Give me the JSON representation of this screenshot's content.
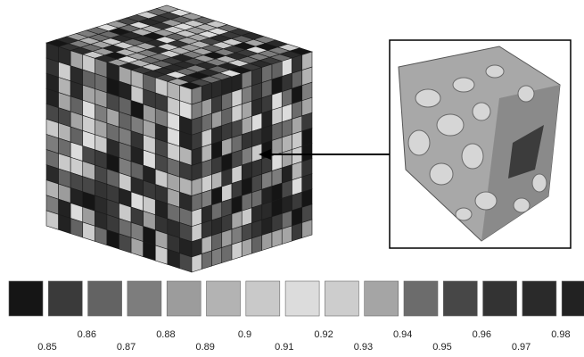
{
  "scale": {
    "labels": [
      "0.85",
      "0.86",
      "0.87",
      "0.88",
      "0.89",
      "0.9",
      "0.91",
      "0.92",
      "0.93",
      "0.94",
      "0.95",
      "0.96",
      "0.97",
      "0.98"
    ],
    "colors": [
      "#151515",
      "#3a3a3a",
      "#636363",
      "#7d7d7d",
      "#9c9c9c",
      "#b3b3b3",
      "#c9c9c9",
      "#dcdcdc",
      "#cdcdcd",
      "#a5a5a5",
      "#6c6c6c",
      "#474747",
      "#333333",
      "#2a2a2a",
      "#222222"
    ]
  }
}
